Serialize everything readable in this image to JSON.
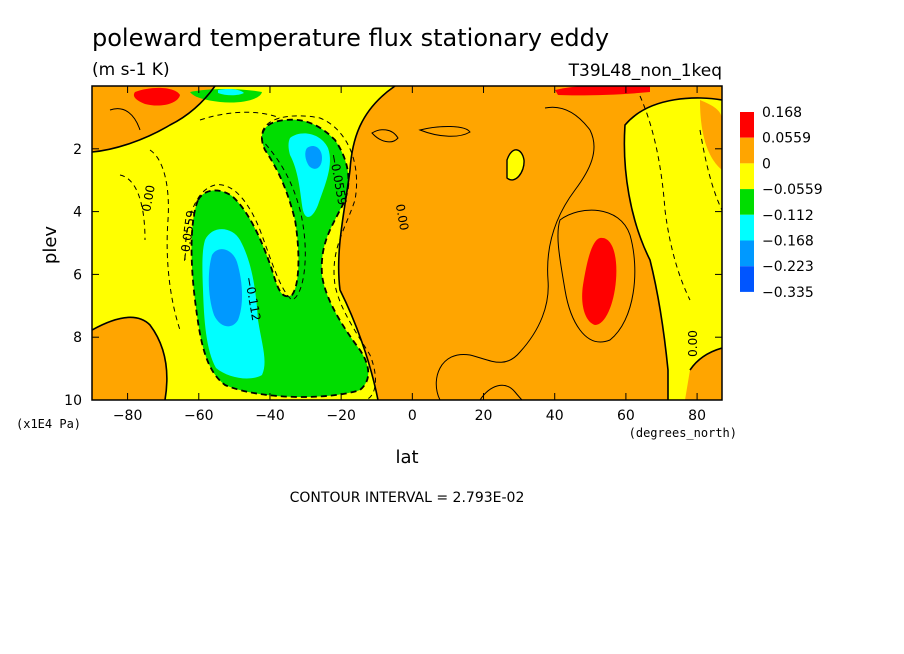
{
  "header": {
    "title": "poleward temperature flux stationary eddy",
    "units": "(m s-1 K)",
    "experiment": "T39L48_non_1keq"
  },
  "footer": {
    "contour_interval": "CONTOUR INTERVAL = 2.793E-02"
  },
  "colors": {
    "red": "#ff0000",
    "orange": "#ffa500",
    "yellow": "#ffff00",
    "green": "#00dd00",
    "cyan": "#00ffff",
    "skyblue": "#0099ff",
    "blue": "#0055ff"
  },
  "chart_data": {
    "type": "heatmap",
    "title": "poleward temperature flux stationary eddy",
    "xlabel": "lat",
    "xunits": "(degrees_north)",
    "ylabel": "plev",
    "yunits": "(x1E4 Pa)",
    "xlim": [
      -90,
      87
    ],
    "ylim": [
      10,
      0
    ],
    "xticks": [
      -80,
      -60,
      -40,
      -20,
      0,
      20,
      40,
      60,
      80
    ],
    "yticks": [
      2,
      4,
      6,
      8,
      10
    ],
    "xtick_labels": [
      "−80",
      "−60",
      "−40",
      "−20",
      "0",
      "20",
      "40",
      "60",
      "80"
    ],
    "ytick_labels": [
      "2",
      "4",
      "6",
      "8",
      "10"
    ],
    "colorbar": [
      {
        "label": "0.168",
        "color": "#ff0000"
      },
      {
        "label": "0.0559",
        "color": "#ffa500"
      },
      {
        "label": "0",
        "color": "#ffff00"
      },
      {
        "label": "−0.0559",
        "color": "#00dd00"
      },
      {
        "label": "−0.112",
        "color": "#00ffff"
      },
      {
        "label": "−0.168",
        "color": "#0099ff"
      },
      {
        "label": "−0.223",
        "color": "#0055ff"
      },
      {
        "label": "−0.335",
        "color": null
      }
    ],
    "contour_labels": [
      {
        "text": "0.00",
        "lat": -73,
        "plev": 3.6,
        "angle": -80
      },
      {
        "text": "−0.0559",
        "lat": -62,
        "plev": 4.8,
        "angle": -82
      },
      {
        "text": "−0.112",
        "lat": -46,
        "plev": 6.8,
        "angle": 80
      },
      {
        "text": "−0.0559",
        "lat": -22,
        "plev": 3.0,
        "angle": 80
      },
      {
        "text": "0.00",
        "lat": -4,
        "plev": 4.2,
        "angle": 80
      },
      {
        "text": "0.00",
        "lat": 80,
        "plev": 8.2,
        "angle": -90
      }
    ],
    "interval": 0.02793
  }
}
